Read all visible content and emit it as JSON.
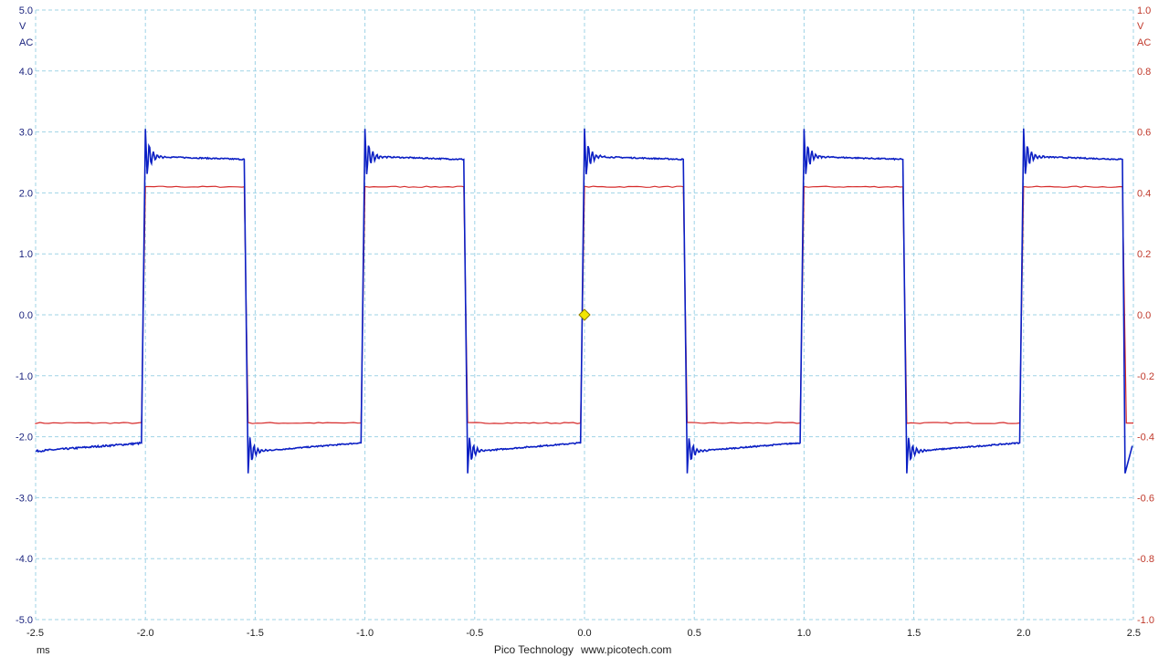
{
  "colors": {
    "channel_a": "#0b1fc4",
    "channel_b": "#d62a2a",
    "grid": "#9fd3e6",
    "axis_text_left": "#1a237e",
    "axis_text_right": "#c0392b",
    "trigger": "#f2e600"
  },
  "left_axis": {
    "unit": "V",
    "coupling": "AC"
  },
  "right_axis": {
    "unit": "V",
    "coupling": "AC"
  },
  "x_axis": {
    "unit": "ms"
  },
  "footer": {
    "brand": "Pico Technology",
    "website": "www.picotech.com"
  },
  "trigger_marker": {
    "icon": "diamond-icon",
    "time": 0.0,
    "level": 0.0
  },
  "chart_data": {
    "type": "line",
    "grid": true,
    "xlim": [
      -2.5,
      2.5
    ],
    "ylim": [
      -5.0,
      5.0
    ],
    "y2lim": [
      -1.0,
      1.0
    ],
    "x_ticks": [
      "-2.5",
      "-2.0",
      "-1.5",
      "-1.0",
      "-0.5",
      "0.0",
      "0.5",
      "1.0",
      "1.5",
      "2.0",
      "2.5"
    ],
    "y_ticks": [
      "5.0",
      "4.0",
      "3.0",
      "2.0",
      "1.0",
      "0.0",
      "-1.0",
      "-2.0",
      "-3.0",
      "-4.0",
      "-5.0"
    ],
    "y2_ticks": [
      "1.0",
      "0.8",
      "0.6",
      "0.4",
      "0.2",
      "0.0",
      "-0.2",
      "-0.4",
      "-0.6",
      "-0.8",
      "-1.0"
    ],
    "rising_edges": [
      -2.0,
      -1.0,
      0.0,
      1.0,
      2.0
    ],
    "falling_edges": [
      -1.55,
      -0.55,
      0.45,
      1.45,
      2.45
    ],
    "series": [
      {
        "axis": "left",
        "high_peak": 3.05,
        "high_settled": 2.6,
        "high_end": 2.55,
        "low_peak": -2.6,
        "low_settled": -2.25,
        "low_end": -2.1
      },
      {
        "axis": "right",
        "high": 0.42,
        "low": -0.355
      }
    ]
  }
}
